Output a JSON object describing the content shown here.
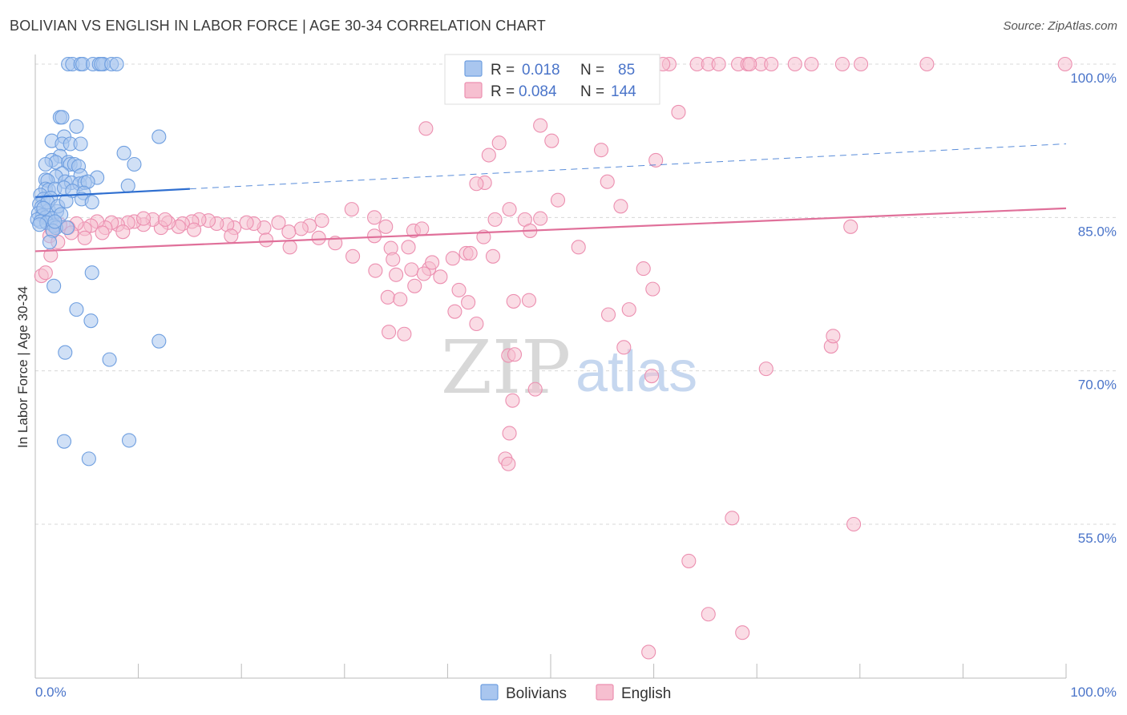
{
  "title": "BOLIVIAN VS ENGLISH IN LABOR FORCE | AGE 30-34 CORRELATION CHART",
  "source": "Source: ZipAtlas.com",
  "watermark": {
    "zip": "ZIP",
    "atlas": "atlas"
  },
  "colors": {
    "blue_fill": "#a9c6ef",
    "blue_stroke": "#6f9fe0",
    "blue_line": "#2f6fd0",
    "pink_fill": "#f6bfd0",
    "pink_stroke": "#ec8fb0",
    "pink_line": "#e0709a",
    "grid": "#d8d8d8",
    "axis": "#bbbbbb"
  },
  "legend": {
    "rows": [
      {
        "r_label": "R =",
        "r_value": "0.018",
        "n_label": "N =",
        "n_value": "85"
      },
      {
        "r_label": "R =",
        "r_value": "0.084",
        "n_label": "N =",
        "n_value": "144"
      }
    ]
  },
  "bottom_legend": {
    "bolivians": "Bolivians",
    "english": "English"
  },
  "chart_data": {
    "type": "scatter",
    "title": "BOLIVIAN VS ENGLISH IN LABOR FORCE | AGE 30-34 CORRELATION CHART",
    "xlabel": "",
    "ylabel": "In Labor Force | Age 30-34",
    "xlim": [
      0,
      100
    ],
    "ylim": [
      40,
      101.5
    ],
    "x_tick_labels": [
      "0.0%",
      "100.0%"
    ],
    "y_ticks": [
      100,
      85,
      70,
      55
    ],
    "y_tick_labels": [
      "100.0%",
      "85.0%",
      "70.0%",
      "55.0%"
    ],
    "legend_position": "top-center",
    "series": [
      {
        "name": "Bolivians",
        "r": 0.018,
        "n": 85,
        "trend": {
          "x0": 0,
          "y0": 87.0,
          "x1": 15,
          "y1": 87.8,
          "dashed_to_x": 100,
          "dashed_to_y": 92.2
        },
        "points": [
          [
            3.2,
            100
          ],
          [
            3.6,
            100
          ],
          [
            4.4,
            100
          ],
          [
            4.6,
            100
          ],
          [
            5.6,
            100
          ],
          [
            6.2,
            100
          ],
          [
            6.6,
            100
          ],
          [
            6.4,
            100
          ],
          [
            7.4,
            100
          ],
          [
            7.9,
            100
          ],
          [
            2.4,
            94.8
          ],
          [
            2.6,
            94.8
          ],
          [
            4.0,
            93.9
          ],
          [
            12.0,
            92.9
          ],
          [
            2.8,
            92.9
          ],
          [
            1.6,
            92.5
          ],
          [
            2.6,
            92.2
          ],
          [
            3.4,
            92.2
          ],
          [
            4.4,
            92.2
          ],
          [
            8.6,
            91.3
          ],
          [
            2.4,
            91.0
          ],
          [
            1.6,
            90.6
          ],
          [
            2.0,
            90.4
          ],
          [
            3.2,
            90.4
          ],
          [
            3.4,
            90.2
          ],
          [
            3.8,
            90.2
          ],
          [
            4.2,
            90.0
          ],
          [
            9.6,
            90.2
          ],
          [
            1.0,
            90.2
          ],
          [
            2.6,
            89.3
          ],
          [
            2.0,
            89.0
          ],
          [
            4.4,
            89.1
          ],
          [
            6.0,
            88.9
          ],
          [
            1.0,
            88.7
          ],
          [
            1.2,
            88.6
          ],
          [
            2.9,
            88.5
          ],
          [
            3.5,
            88.4
          ],
          [
            4.3,
            88.3
          ],
          [
            4.8,
            88.4
          ],
          [
            5.1,
            88.5
          ],
          [
            9.0,
            88.1
          ],
          [
            1.0,
            87.8
          ],
          [
            1.3,
            87.7
          ],
          [
            1.9,
            87.8
          ],
          [
            2.8,
            87.9
          ],
          [
            3.6,
            87.6
          ],
          [
            4.7,
            87.4
          ],
          [
            0.5,
            87.2
          ],
          [
            0.8,
            86.8
          ],
          [
            1.5,
            86.9
          ],
          [
            4.5,
            86.8
          ],
          [
            5.5,
            86.5
          ],
          [
            0.4,
            86.3
          ],
          [
            0.6,
            86.0
          ],
          [
            1.3,
            85.7
          ],
          [
            2.1,
            85.6
          ],
          [
            0.3,
            85.4
          ],
          [
            0.7,
            85.2
          ],
          [
            1.0,
            85.0
          ],
          [
            1.6,
            84.9
          ],
          [
            0.2,
            84.8
          ],
          [
            0.5,
            84.6
          ],
          [
            1.1,
            84.5
          ],
          [
            0.4,
            84.3
          ],
          [
            1.8,
            84.2
          ],
          [
            2.0,
            84.0
          ],
          [
            3.1,
            84.0
          ],
          [
            1.7,
            83.7
          ],
          [
            1.4,
            82.6
          ],
          [
            5.5,
            79.6
          ],
          [
            1.8,
            78.3
          ],
          [
            4.0,
            76.0
          ],
          [
            5.4,
            74.9
          ],
          [
            12.0,
            72.9
          ],
          [
            2.9,
            71.8
          ],
          [
            7.2,
            71.1
          ],
          [
            2.8,
            63.1
          ],
          [
            9.1,
            63.2
          ],
          [
            5.2,
            61.4
          ],
          [
            1.2,
            86.5
          ],
          [
            2.2,
            86.1
          ],
          [
            0.8,
            85.9
          ],
          [
            3.0,
            86.6
          ],
          [
            2.5,
            85.3
          ],
          [
            1.9,
            84.6
          ]
        ]
      },
      {
        "name": "English",
        "r": 0.084,
        "n": 144,
        "trend": {
          "x0": 0,
          "y0": 81.7,
          "x1": 100,
          "y1": 85.9
        },
        "points": [
          [
            52.5,
            100
          ],
          [
            55.2,
            100
          ],
          [
            57.1,
            100
          ],
          [
            61.5,
            100
          ],
          [
            64.2,
            100
          ],
          [
            65.3,
            100
          ],
          [
            66.3,
            100
          ],
          [
            68.2,
            100
          ],
          [
            69.1,
            100
          ],
          [
            70.4,
            100
          ],
          [
            73.7,
            100
          ],
          [
            75.3,
            100
          ],
          [
            78.3,
            100
          ],
          [
            80.1,
            100
          ],
          [
            86.5,
            100
          ],
          [
            99.9,
            100
          ],
          [
            69.3,
            100
          ],
          [
            60.9,
            100
          ],
          [
            51.5,
            100
          ],
          [
            71.4,
            100
          ],
          [
            62.4,
            95.3
          ],
          [
            49.0,
            94.0
          ],
          [
            37.9,
            93.7
          ],
          [
            50.1,
            92.5
          ],
          [
            54.9,
            91.6
          ],
          [
            45.0,
            92.3
          ],
          [
            44.0,
            91.1
          ],
          [
            60.2,
            90.6
          ],
          [
            43.6,
            88.4
          ],
          [
            55.5,
            88.5
          ],
          [
            42.8,
            88.3
          ],
          [
            50.7,
            86.7
          ],
          [
            46.0,
            85.8
          ],
          [
            56.8,
            86.1
          ],
          [
            79.1,
            84.1
          ],
          [
            52.7,
            82.1
          ],
          [
            59.0,
            80.0
          ],
          [
            34.0,
            84.1
          ],
          [
            30.7,
            85.8
          ],
          [
            32.9,
            85.0
          ],
          [
            27.8,
            84.7
          ],
          [
            26.6,
            84.2
          ],
          [
            25.8,
            83.9
          ],
          [
            24.6,
            83.6
          ],
          [
            23.6,
            84.5
          ],
          [
            22.2,
            84.0
          ],
          [
            21.2,
            84.4
          ],
          [
            20.5,
            84.5
          ],
          [
            19.3,
            84.0
          ],
          [
            18.6,
            84.3
          ],
          [
            17.6,
            84.4
          ],
          [
            16.8,
            84.7
          ],
          [
            15.9,
            84.8
          ],
          [
            15.2,
            84.6
          ],
          [
            14.3,
            84.4
          ],
          [
            13.9,
            84.1
          ],
          [
            12.9,
            84.5
          ],
          [
            12.2,
            84.0
          ],
          [
            11.4,
            84.8
          ],
          [
            10.5,
            84.3
          ],
          [
            9.6,
            84.6
          ],
          [
            9.0,
            84.5
          ],
          [
            8.0,
            84.3
          ],
          [
            7.4,
            84.5
          ],
          [
            6.8,
            84.0
          ],
          [
            6.0,
            84.6
          ],
          [
            5.4,
            84.2
          ],
          [
            4.8,
            83.9
          ],
          [
            4.0,
            84.4
          ],
          [
            3.2,
            84.0
          ],
          [
            2.4,
            84.3
          ],
          [
            1.6,
            83.8
          ],
          [
            1.4,
            83.2
          ],
          [
            2.2,
            82.6
          ],
          [
            3.5,
            83.5
          ],
          [
            4.8,
            83.0
          ],
          [
            6.5,
            83.5
          ],
          [
            8.5,
            83.6
          ],
          [
            10.5,
            84.9
          ],
          [
            12.6,
            84.8
          ],
          [
            15.4,
            83.8
          ],
          [
            19.0,
            83.2
          ],
          [
            22.4,
            82.8
          ],
          [
            24.7,
            82.1
          ],
          [
            27.5,
            83.0
          ],
          [
            29.1,
            82.5
          ],
          [
            30.8,
            81.2
          ],
          [
            32.9,
            83.2
          ],
          [
            34.5,
            82.0
          ],
          [
            36.7,
            83.7
          ],
          [
            37.5,
            83.9
          ],
          [
            36.2,
            82.1
          ],
          [
            34.7,
            80.9
          ],
          [
            33.0,
            79.8
          ],
          [
            35.0,
            79.4
          ],
          [
            36.5,
            79.9
          ],
          [
            38.2,
            80.0
          ],
          [
            37.7,
            79.5
          ],
          [
            39.3,
            79.2
          ],
          [
            38.5,
            80.6
          ],
          [
            40.5,
            81.0
          ],
          [
            41.8,
            81.5
          ],
          [
            42.2,
            81.5
          ],
          [
            43.5,
            83.1
          ],
          [
            44.4,
            81.2
          ],
          [
            44.6,
            84.8
          ],
          [
            47.5,
            84.8
          ],
          [
            49.0,
            84.9
          ],
          [
            48.0,
            83.7
          ],
          [
            36.8,
            78.3
          ],
          [
            41.1,
            77.9
          ],
          [
            42.0,
            76.7
          ],
          [
            34.2,
            77.2
          ],
          [
            35.4,
            77.0
          ],
          [
            34.3,
            73.8
          ],
          [
            35.8,
            73.6
          ],
          [
            40.7,
            75.8
          ],
          [
            42.8,
            74.6
          ],
          [
            46.4,
            76.8
          ],
          [
            47.9,
            76.9
          ],
          [
            45.9,
            71.5
          ],
          [
            46.5,
            71.6
          ],
          [
            55.6,
            75.5
          ],
          [
            57.1,
            72.3
          ],
          [
            59.8,
            69.5
          ],
          [
            70.9,
            70.2
          ],
          [
            57.6,
            76.0
          ],
          [
            59.9,
            78.0
          ],
          [
            77.2,
            72.4
          ],
          [
            77.4,
            73.4
          ],
          [
            46.3,
            67.1
          ],
          [
            48.5,
            68.2
          ],
          [
            46.0,
            63.9
          ],
          [
            45.6,
            61.4
          ],
          [
            45.9,
            60.9
          ],
          [
            67.6,
            55.6
          ],
          [
            79.4,
            55.0
          ],
          [
            63.4,
            51.4
          ],
          [
            65.3,
            46.2
          ],
          [
            68.6,
            44.4
          ],
          [
            59.5,
            42.5
          ],
          [
            0.6,
            79.3
          ],
          [
            1.0,
            79.6
          ],
          [
            1.5,
            81.3
          ]
        ]
      }
    ]
  }
}
